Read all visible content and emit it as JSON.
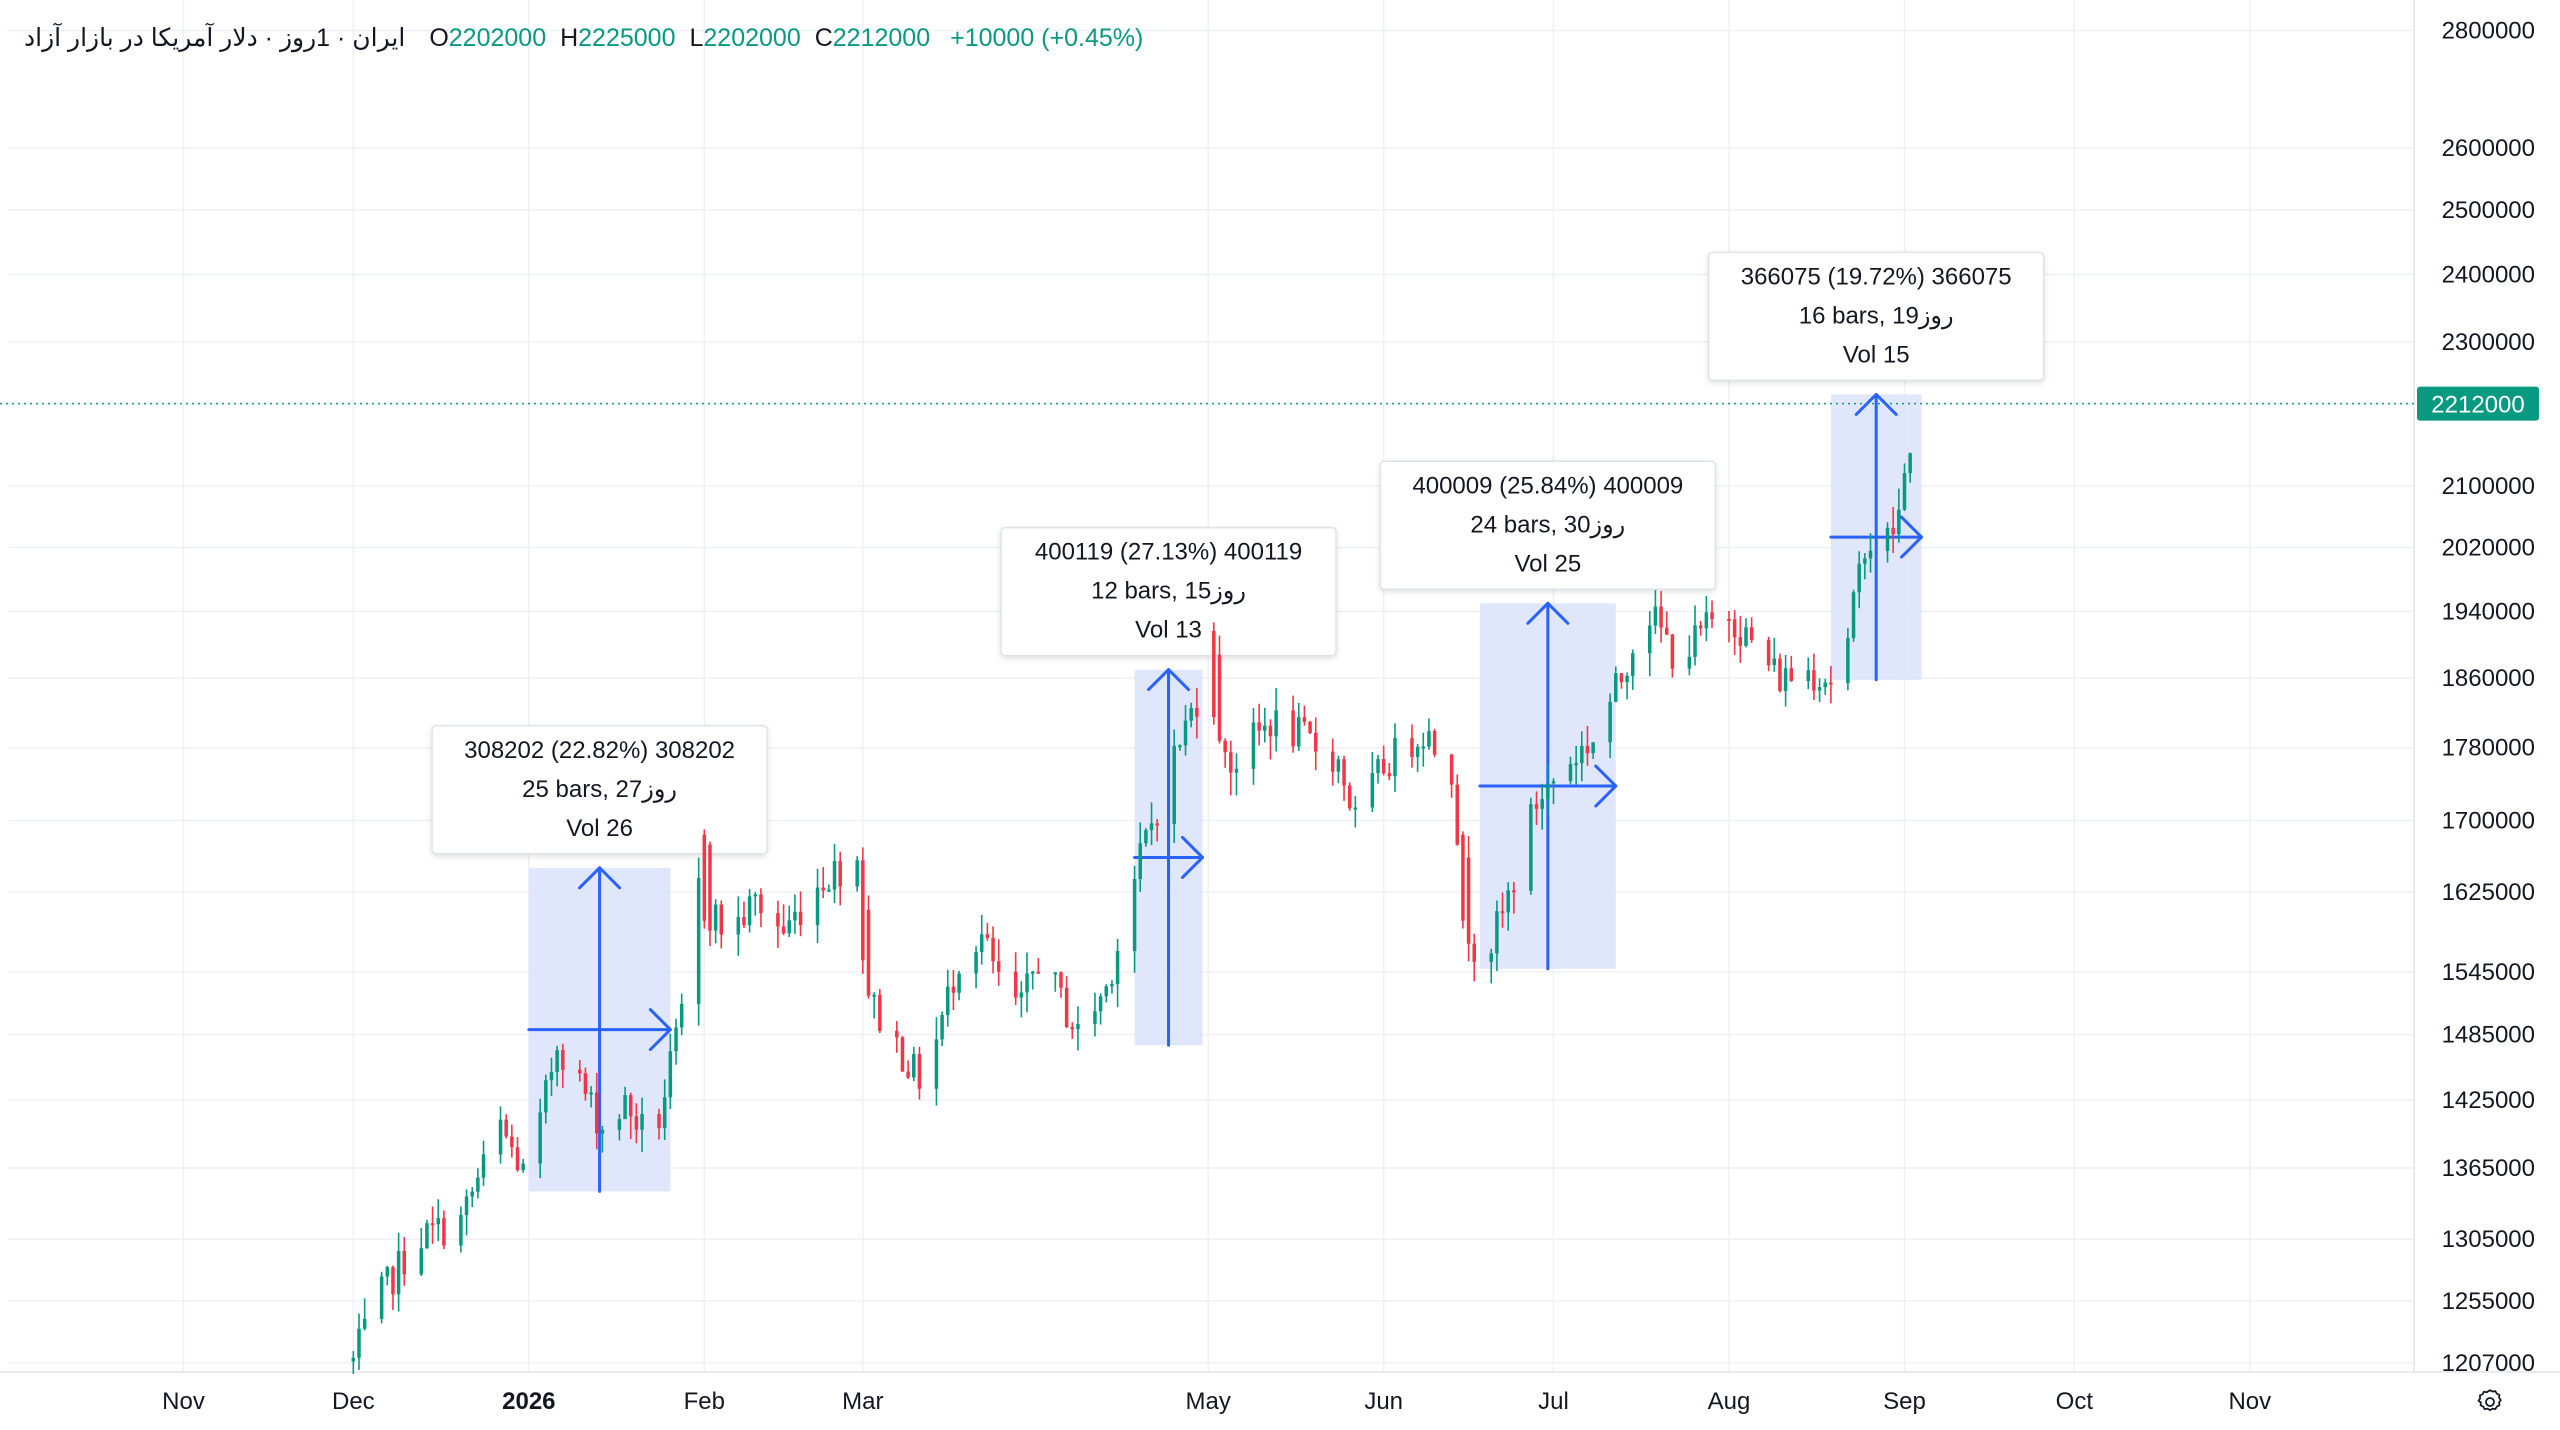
{
  "legend": {
    "symbol": "ایران · 1روز · دلار آمریکا در بازار آزاد",
    "open_label": "O",
    "open": "2202000",
    "high_label": "H",
    "high": "2225000",
    "low_label": "L",
    "low": "2202000",
    "close_label": "C",
    "close": "2212000",
    "change": "+10000 (+0.45%)"
  },
  "last_price_label": "2212000",
  "colors": {
    "up": "#089981",
    "down": "#f23645",
    "measure_line": "#2962ff",
    "measure_fill": "#dbe3fb",
    "last_price": "#089981"
  },
  "icons": {
    "settings": "gear-icon"
  },
  "chart_data": {
    "type": "candlestick",
    "title": "",
    "xlabel": "",
    "ylabel": "",
    "y_scale": "log",
    "ylim": [
      1200000,
      2840000
    ],
    "xlim": [
      "2025-10-01",
      "2026-11-30"
    ],
    "grid": true,
    "x_ticks": [
      {
        "date": "2025-11-01",
        "label": "Nov",
        "bold": false
      },
      {
        "date": "2025-12-01",
        "label": "Dec",
        "bold": false
      },
      {
        "date": "2026-01-01",
        "label": "2026",
        "bold": true
      },
      {
        "date": "2026-02-01",
        "label": "Feb",
        "bold": false
      },
      {
        "date": "2026-03-01",
        "label": "Mar",
        "bold": false
      },
      {
        "date": "2026-05-01",
        "label": "May",
        "bold": false
      },
      {
        "date": "2026-06-01",
        "label": "Jun",
        "bold": false
      },
      {
        "date": "2026-07-01",
        "label": "Jul",
        "bold": false
      },
      {
        "date": "2026-08-01",
        "label": "Aug",
        "bold": false
      },
      {
        "date": "2026-09-01",
        "label": "Sep",
        "bold": false
      },
      {
        "date": "2026-10-01",
        "label": "Oct",
        "bold": false
      },
      {
        "date": "2026-11-01",
        "label": "Nov",
        "bold": false
      }
    ],
    "y_ticks": [
      2800000,
      2600000,
      2500000,
      2400000,
      2300000,
      2100000,
      2020000,
      1940000,
      1860000,
      1780000,
      1700000,
      1625000,
      1545000,
      1485000,
      1425000,
      1365000,
      1305000,
      1255000,
      1207000
    ],
    "last_price": 2212000,
    "anchors": [
      [
        "2025-12-01",
        1208000
      ],
      [
        "2025-12-05",
        1252000
      ],
      [
        "2025-12-12",
        1305000
      ],
      [
        "2025-12-20",
        1320000
      ],
      [
        "2025-12-27",
        1400000
      ],
      [
        "2026-01-01",
        1350000
      ],
      [
        "2026-01-06",
        1480000
      ],
      [
        "2026-01-14",
        1400000
      ],
      [
        "2026-01-18",
        1420000
      ],
      [
        "2026-01-23",
        1385000
      ],
      [
        "2026-01-28",
        1500000
      ],
      [
        "2026-01-30",
        1640000
      ],
      [
        "2026-02-05",
        1580000
      ],
      [
        "2026-02-10",
        1615000
      ],
      [
        "2026-02-15",
        1585000
      ],
      [
        "2026-02-22",
        1640000
      ],
      [
        "2026-02-28",
        1660000
      ],
      [
        "2026-03-01",
        1580000
      ],
      [
        "2026-03-03",
        1510000
      ],
      [
        "2026-03-10",
        1450000
      ],
      [
        "2026-03-12",
        1440000
      ],
      [
        "2026-03-18",
        1560000
      ],
      [
        "2026-03-22",
        1580000
      ],
      [
        "2026-03-26",
        1520000
      ],
      [
        "2026-03-29",
        1510000
      ],
      [
        "2026-04-01",
        1560000
      ],
      [
        "2026-04-08",
        1485000
      ],
      [
        "2026-04-13",
        1530000
      ],
      [
        "2026-04-20",
        1680000
      ],
      [
        "2026-04-25",
        1770000
      ],
      [
        "2026-05-01",
        1870000
      ],
      [
        "2026-05-05",
        1760000
      ],
      [
        "2026-05-12",
        1810000
      ],
      [
        "2026-05-18",
        1790000
      ],
      [
        "2026-05-24",
        1765000
      ],
      [
        "2026-05-27",
        1700000
      ],
      [
        "2026-06-01",
        1760000
      ],
      [
        "2026-06-08",
        1800000
      ],
      [
        "2026-06-13",
        1760000
      ],
      [
        "2026-06-15",
        1620000
      ],
      [
        "2026-06-18",
        1550000
      ],
      [
        "2026-06-22",
        1600000
      ],
      [
        "2026-06-28",
        1720000
      ],
      [
        "2026-07-03",
        1760000
      ],
      [
        "2026-07-08",
        1790000
      ],
      [
        "2026-07-13",
        1860000
      ],
      [
        "2026-07-17",
        1950000
      ],
      [
        "2026-07-23",
        1880000
      ],
      [
        "2026-07-28",
        1920000
      ],
      [
        "2026-08-01",
        1940000
      ],
      [
        "2026-08-05",
        1900000
      ],
      [
        "2026-08-10",
        1860000
      ],
      [
        "2026-08-15",
        1870000
      ],
      [
        "2026-08-19",
        1860000
      ],
      [
        "2026-08-22",
        1900000
      ],
      [
        "2026-08-25",
        2030000
      ],
      [
        "2026-08-28",
        2015000
      ],
      [
        "2026-08-31",
        2060000
      ],
      [
        "2026-09-03",
        2212000
      ]
    ],
    "down_days": [
      "2026-06-15",
      "2026-06-16",
      "2026-05-02",
      "2026-05-03",
      "2026-03-01",
      "2026-03-02",
      "2026-02-01",
      "2026-02-02"
    ],
    "measurements": [
      {
        "start": "2026-01-01",
        "end": "2026-01-26",
        "low": 1345000,
        "high": 1650000,
        "arrow": "up",
        "line1": "308202 (22.82%) 308202",
        "line2": "25 bars, 27روز",
        "line3": "Vol 26"
      },
      {
        "start": "2026-04-18",
        "end": "2026-04-30",
        "low": 1475000,
        "high": 1870000,
        "arrow": "up",
        "line1": "400119 (27.13%) 400119",
        "line2": "12 bars, 15روز",
        "line3": "Vol 13"
      },
      {
        "start": "2026-06-18",
        "end": "2026-07-12",
        "low": 1548000,
        "high": 1950000,
        "arrow": "up",
        "line1": "400009 (25.84%) 400009",
        "line2": "24 bars, 30روز",
        "line3": "Vol 25"
      },
      {
        "start": "2026-08-19",
        "end": "2026-09-04",
        "low": 1858000,
        "high": 2225000,
        "arrow": "up",
        "line1": "366075 (19.72%) 366075",
        "line2": "16 bars, 19روز",
        "line3": "Vol 15"
      }
    ]
  }
}
